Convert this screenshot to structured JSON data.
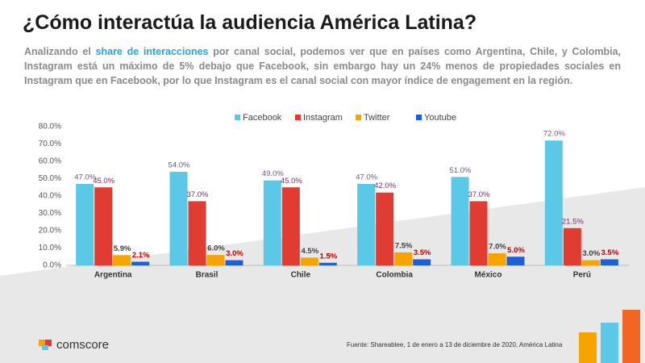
{
  "slide": {
    "heading": "¿Cómo interactúa la audiencia América Latina?",
    "intro": [
      "Analizando el ",
      "share de interacciones",
      " por canal social, podemos ver que en países como Argentina, Chile, y Colombia, Instagram está un máximo de 5% debajo que Facebook, sin embargo hay un 24% menos de propiedades sociales en Instagram que en Facebook, por lo que Instagram es el canal social con mayor índice de engagement en la región."
    ],
    "source": "Fuente: Shareablee, 1 de enero a 13 de diciembre de 2020, América Latina",
    "logo": "comscore"
  },
  "chart_data": {
    "type": "bar",
    "categories": [
      "Argentina",
      "Brasil",
      "Chile",
      "Colombia",
      "México",
      "Perú"
    ],
    "series": [
      {
        "name": "Facebook",
        "color": "#5bc8e8",
        "label_color": "#6e5a80",
        "values": [
          47,
          54,
          49,
          47,
          51,
          72
        ],
        "value_labels": [
          "47.0%",
          "54.0%",
          "49.0%",
          "47.0%",
          "51.0%",
          "72.0%"
        ]
      },
      {
        "name": "Instagram",
        "color": "#e03c31",
        "label_color": "#7a2a6a",
        "values": [
          45,
          37,
          45,
          42,
          37,
          21.5
        ],
        "value_labels": [
          "45.0%",
          "37.0%",
          "45.0%",
          "42.0%",
          "37.0%",
          "21.5%"
        ]
      },
      {
        "name": "Twitter",
        "color": "#f7a400",
        "label_color": "#404040",
        "values": [
          5.9,
          6,
          4.5,
          7.5,
          7,
          3
        ],
        "value_labels": [
          "5.9%",
          "6.0%",
          "4.5%",
          "7.5%",
          "7.0%",
          "3.0%"
        ]
      },
      {
        "name": "Youtube",
        "color": "#1f5fd6",
        "label_color": "#c00000",
        "values": [
          2.1,
          3,
          1.5,
          3.5,
          5,
          3.5
        ],
        "value_labels": [
          "2.1%",
          "3.0%",
          "1.5%",
          "3.5%",
          "5.0%",
          "3.5%"
        ]
      }
    ],
    "ylim": [
      0,
      80
    ],
    "yticks": [
      {
        "value": 0,
        "label": "0.0%"
      },
      {
        "value": 10,
        "label": "10.0%"
      },
      {
        "value": 20,
        "label": "20.0%"
      },
      {
        "value": 30,
        "label": "30.0%"
      },
      {
        "value": 40,
        "label": "40.0%"
      },
      {
        "value": 50,
        "label": "50.0%"
      },
      {
        "value": 60,
        "label": "60.0%"
      },
      {
        "value": 70,
        "label": "70.0%"
      },
      {
        "value": 80,
        "label": "80.0%"
      }
    ],
    "grid": false,
    "legend": "top"
  }
}
